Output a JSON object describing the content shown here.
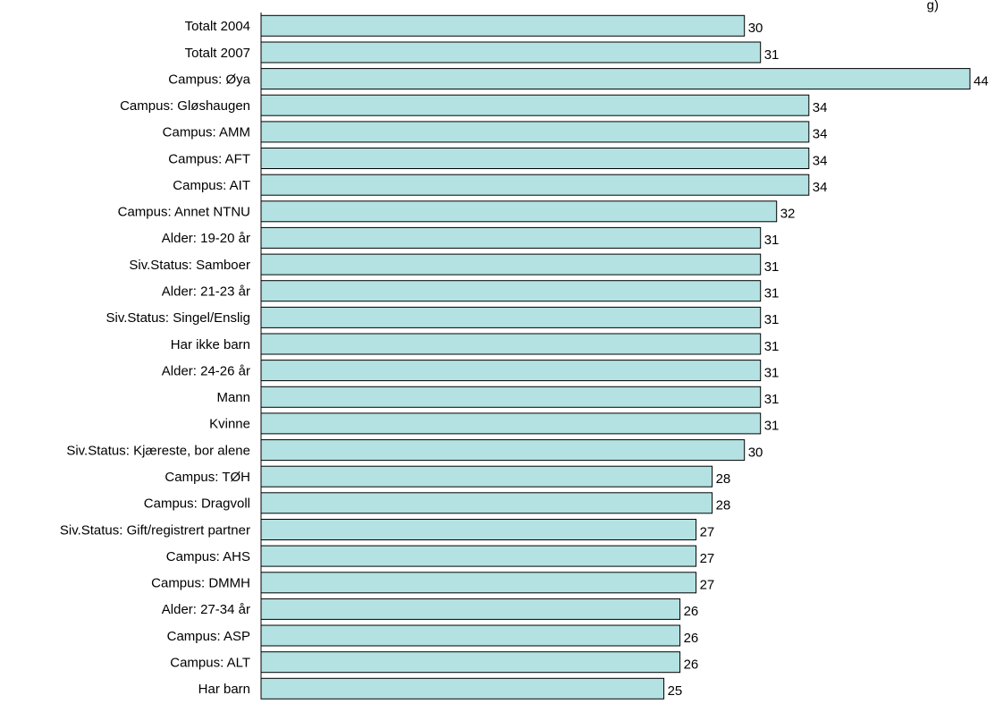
{
  "chart_data": {
    "type": "bar",
    "orientation": "horizontal",
    "title_fragment": "g)",
    "categories": [
      "Totalt 2004",
      "Totalt 2007",
      "Campus: Øya",
      "Campus: Gløshaugen",
      "Campus: AMM",
      "Campus: AFT",
      "Campus: AIT",
      "Campus: Annet NTNU",
      "Alder: 19-20 år",
      "Siv.Status: Samboer",
      "Alder: 21-23 år",
      "Siv.Status: Singel/Enslig",
      "Har ikke barn",
      "Alder: 24-26 år",
      "Mann",
      "Kvinne",
      "Siv.Status: Kjæreste, bor alene",
      "Campus: TØH",
      "Campus: Dragvoll",
      "Siv.Status: Gift/registrert partner",
      "Campus: AHS",
      "Campus: DMMH",
      "Alder: 27-34 år",
      "Campus: ASP",
      "Campus: ALT",
      "Har barn"
    ],
    "values": [
      30,
      31,
      44,
      34,
      34,
      34,
      34,
      32,
      31,
      31,
      31,
      31,
      31,
      31,
      31,
      31,
      30,
      28,
      28,
      27,
      27,
      27,
      26,
      26,
      26,
      25
    ],
    "xlim": [
      0,
      44
    ],
    "bar_color": "#b4e1e1",
    "bar_edge_color": "#000000",
    "grid": false,
    "legend": "none"
  }
}
